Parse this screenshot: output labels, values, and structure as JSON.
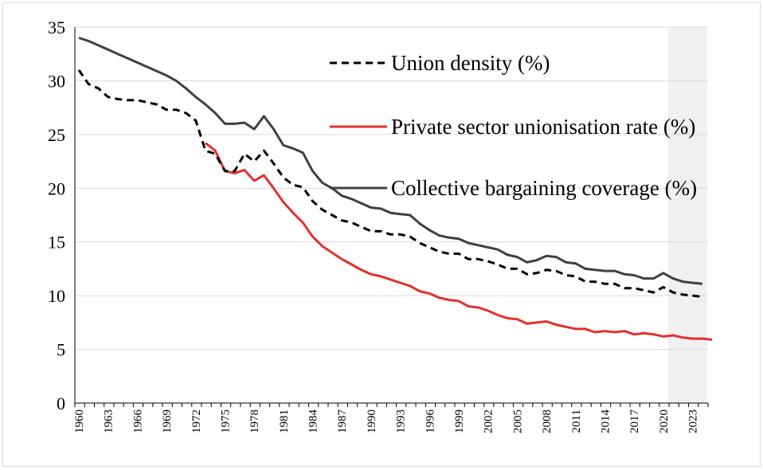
{
  "chart_data": {
    "type": "line",
    "title": "",
    "xlabel": "",
    "ylabel": "",
    "ylim": [
      0,
      35
    ],
    "yticks": [
      0,
      5,
      10,
      15,
      20,
      25,
      30,
      35
    ],
    "xlim": [
      1960,
      2024
    ],
    "xticks": [
      1960,
      1963,
      1966,
      1969,
      1972,
      1975,
      1978,
      1981,
      1984,
      1987,
      1990,
      1993,
      1996,
      1999,
      2002,
      2005,
      2008,
      2011,
      2014,
      2017,
      2020,
      2023
    ],
    "grid": "horizontal",
    "legend_position": "top-right",
    "shaded_region": [
      2020.5,
      2024.5
    ],
    "series": [
      {
        "name": "Union density (%)",
        "style": "dashed",
        "color": "#000000",
        "points": [
          [
            1960,
            31.0
          ],
          [
            1961,
            29.7
          ],
          [
            1962,
            29.3
          ],
          [
            1963,
            28.5
          ],
          [
            1964,
            28.3
          ],
          [
            1965,
            28.2
          ],
          [
            1966,
            28.2
          ],
          [
            1967,
            28.0
          ],
          [
            1968,
            27.8
          ],
          [
            1969,
            27.3
          ],
          [
            1970,
            27.3
          ],
          [
            1971,
            27.0
          ],
          [
            1972,
            26.3
          ],
          [
            1973,
            23.5
          ],
          [
            1974,
            23.2
          ],
          [
            1975,
            21.6
          ],
          [
            1976,
            21.6
          ],
          [
            1977,
            23.2
          ],
          [
            1978,
            22.5
          ],
          [
            1979,
            23.5
          ],
          [
            1980,
            22.3
          ],
          [
            1981,
            21.0
          ],
          [
            1982,
            20.3
          ],
          [
            1983,
            20.1
          ],
          [
            1984,
            18.8
          ],
          [
            1985,
            18.0
          ],
          [
            1986,
            17.5
          ],
          [
            1987,
            17.0
          ],
          [
            1988,
            16.8
          ],
          [
            1989,
            16.4
          ],
          [
            1990,
            16.0
          ],
          [
            1991,
            16.0
          ],
          [
            1992,
            15.7
          ],
          [
            1993,
            15.7
          ],
          [
            1994,
            15.5
          ],
          [
            1995,
            14.9
          ],
          [
            1996,
            14.5
          ],
          [
            1997,
            14.1
          ],
          [
            1998,
            13.9
          ],
          [
            1999,
            13.9
          ],
          [
            2000,
            13.4
          ],
          [
            2001,
            13.4
          ],
          [
            2002,
            13.2
          ],
          [
            2003,
            12.9
          ],
          [
            2004,
            12.5
          ],
          [
            2005,
            12.5
          ],
          [
            2006,
            12.0
          ],
          [
            2007,
            12.1
          ],
          [
            2008,
            12.4
          ],
          [
            2009,
            12.3
          ],
          [
            2010,
            11.9
          ],
          [
            2011,
            11.8
          ],
          [
            2012,
            11.3
          ],
          [
            2013,
            11.3
          ],
          [
            2014,
            11.1
          ],
          [
            2015,
            11.1
          ],
          [
            2016,
            10.7
          ],
          [
            2017,
            10.7
          ],
          [
            2018,
            10.5
          ],
          [
            2019,
            10.3
          ],
          [
            2020,
            10.8
          ],
          [
            2021,
            10.3
          ],
          [
            2022,
            10.1
          ],
          [
            2023,
            10.0
          ],
          [
            2024,
            9.9
          ]
        ]
      },
      {
        "name": "Private sector unionisation rate (%)",
        "style": "solid",
        "color": "#e3312d",
        "points": [
          [
            1973,
            24.2
          ],
          [
            1974,
            23.5
          ],
          [
            1975,
            21.6
          ],
          [
            1976,
            21.4
          ],
          [
            1977,
            21.7
          ],
          [
            1978,
            20.7
          ],
          [
            1979,
            21.2
          ],
          [
            1980,
            20.0
          ],
          [
            1981,
            18.7
          ],
          [
            1982,
            17.7
          ],
          [
            1983,
            16.8
          ],
          [
            1984,
            15.5
          ],
          [
            1985,
            14.6
          ],
          [
            1986,
            14.0
          ],
          [
            1987,
            13.4
          ],
          [
            1988,
            12.9
          ],
          [
            1989,
            12.4
          ],
          [
            1990,
            12.0
          ],
          [
            1991,
            11.8
          ],
          [
            1992,
            11.5
          ],
          [
            1993,
            11.2
          ],
          [
            1994,
            10.9
          ],
          [
            1995,
            10.4
          ],
          [
            1996,
            10.2
          ],
          [
            1997,
            9.8
          ],
          [
            1998,
            9.6
          ],
          [
            1999,
            9.5
          ],
          [
            2000,
            9.0
          ],
          [
            2001,
            8.9
          ],
          [
            2002,
            8.6
          ],
          [
            2003,
            8.2
          ],
          [
            2004,
            7.9
          ],
          [
            2005,
            7.8
          ],
          [
            2006,
            7.4
          ],
          [
            2007,
            7.5
          ],
          [
            2008,
            7.6
          ],
          [
            2009,
            7.3
          ],
          [
            2010,
            7.1
          ],
          [
            2011,
            6.9
          ],
          [
            2012,
            6.9
          ],
          [
            2013,
            6.6
          ],
          [
            2014,
            6.7
          ],
          [
            2015,
            6.6
          ],
          [
            2016,
            6.7
          ],
          [
            2017,
            6.4
          ],
          [
            2018,
            6.5
          ],
          [
            2019,
            6.4
          ],
          [
            2020,
            6.2
          ],
          [
            2021,
            6.3
          ],
          [
            2022,
            6.1
          ],
          [
            2023,
            6.0
          ],
          [
            2024,
            6.0
          ],
          [
            2025,
            5.9
          ]
        ]
      },
      {
        "name": "Collective bargaining coverage (%)",
        "style": "solid",
        "color": "#404040",
        "points": [
          [
            1960,
            34.0
          ],
          [
            1961,
            33.7
          ],
          [
            1962,
            33.3
          ],
          [
            1963,
            32.9
          ],
          [
            1964,
            32.5
          ],
          [
            1965,
            32.1
          ],
          [
            1966,
            31.7
          ],
          [
            1967,
            31.3
          ],
          [
            1968,
            30.9
          ],
          [
            1969,
            30.5
          ],
          [
            1970,
            30.0
          ],
          [
            1971,
            29.3
          ],
          [
            1972,
            28.5
          ],
          [
            1973,
            27.8
          ],
          [
            1974,
            27.0
          ],
          [
            1975,
            26.0
          ],
          [
            1976,
            26.0
          ],
          [
            1977,
            26.1
          ],
          [
            1978,
            25.5
          ],
          [
            1979,
            26.7
          ],
          [
            1980,
            25.5
          ],
          [
            1981,
            24.0
          ],
          [
            1982,
            23.7
          ],
          [
            1983,
            23.3
          ],
          [
            1984,
            21.6
          ],
          [
            1985,
            20.5
          ],
          [
            1986,
            20.0
          ],
          [
            1987,
            19.3
          ],
          [
            1988,
            19.0
          ],
          [
            1989,
            18.6
          ],
          [
            1990,
            18.2
          ],
          [
            1991,
            18.1
          ],
          [
            1992,
            17.7
          ],
          [
            1993,
            17.6
          ],
          [
            1994,
            17.5
          ],
          [
            1995,
            16.7
          ],
          [
            1996,
            16.1
          ],
          [
            1997,
            15.6
          ],
          [
            1998,
            15.4
          ],
          [
            1999,
            15.3
          ],
          [
            2000,
            14.9
          ],
          [
            2001,
            14.7
          ],
          [
            2002,
            14.5
          ],
          [
            2003,
            14.3
          ],
          [
            2004,
            13.8
          ],
          [
            2005,
            13.6
          ],
          [
            2006,
            13.1
          ],
          [
            2007,
            13.3
          ],
          [
            2008,
            13.7
          ],
          [
            2009,
            13.6
          ],
          [
            2010,
            13.1
          ],
          [
            2011,
            13.0
          ],
          [
            2012,
            12.5
          ],
          [
            2013,
            12.4
          ],
          [
            2014,
            12.3
          ],
          [
            2015,
            12.3
          ],
          [
            2016,
            12.0
          ],
          [
            2017,
            11.9
          ],
          [
            2018,
            11.6
          ],
          [
            2019,
            11.6
          ],
          [
            2020,
            12.1
          ],
          [
            2021,
            11.6
          ],
          [
            2022,
            11.3
          ],
          [
            2023,
            11.2
          ],
          [
            2024,
            11.1
          ]
        ]
      }
    ]
  }
}
